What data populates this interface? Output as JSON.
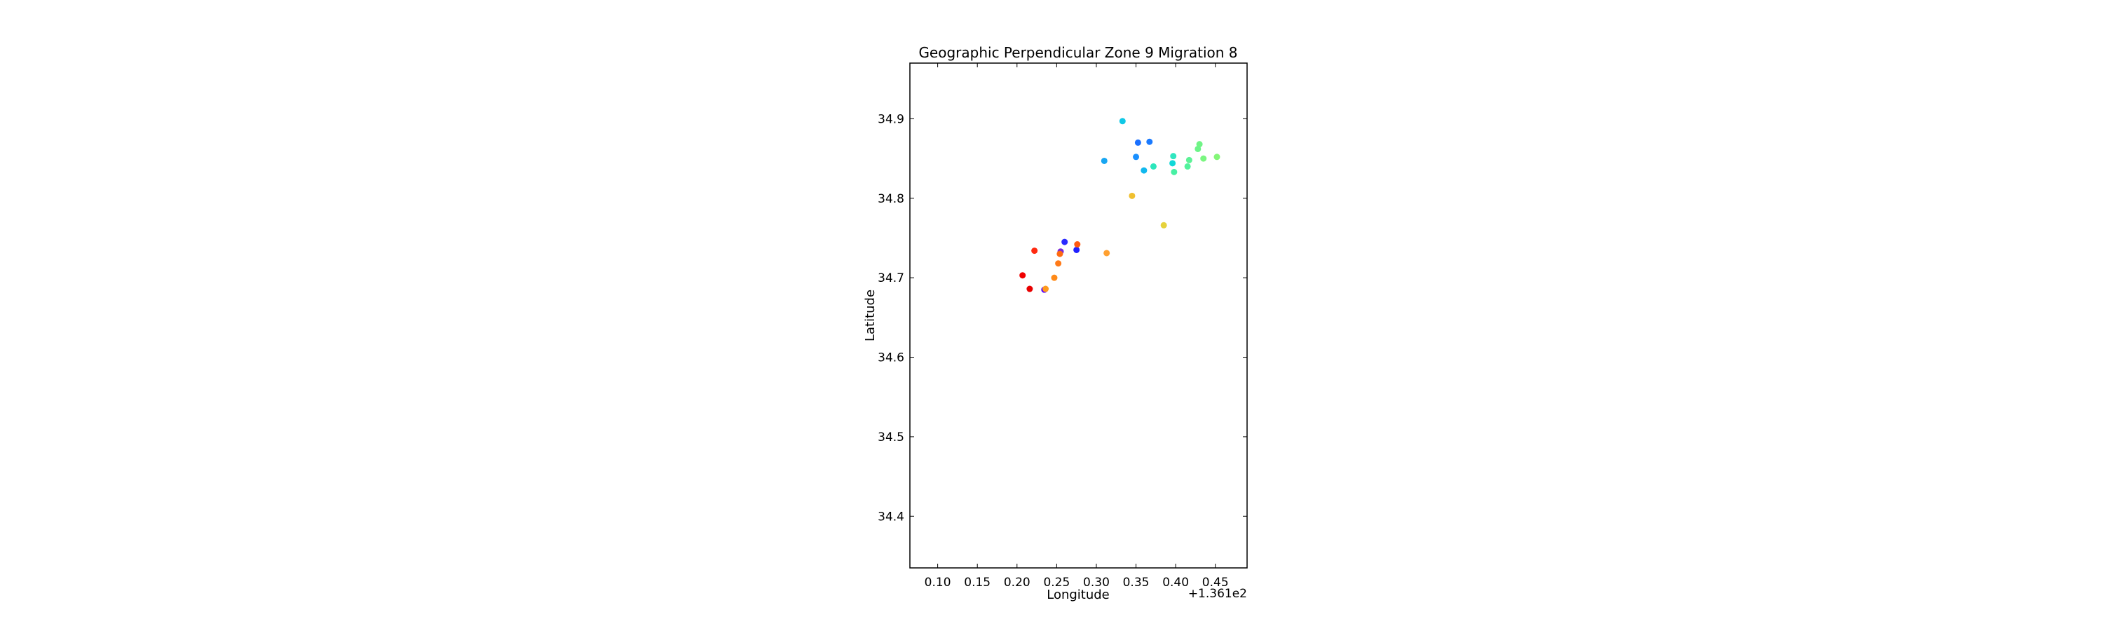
{
  "chart_data": {
    "type": "scatter",
    "title": "Geographic Perpendicular Zone 9 Migration 8",
    "xlabel": "Longitude",
    "ylabel": "Latitude",
    "x_offset_label": "+1.361e2",
    "xlim": [
      136.165,
      136.59
    ],
    "ylim": [
      34.335,
      34.97
    ],
    "x_ticks": [
      136.2,
      136.25,
      136.3,
      136.35,
      136.4,
      136.45,
      136.5,
      136.55
    ],
    "x_tick_labels": [
      "0.10",
      "0.15",
      "0.20",
      "0.25",
      "0.30",
      "0.35",
      "0.40",
      "0.45"
    ],
    "y_ticks": [
      34.4,
      34.5,
      34.6,
      34.7,
      34.8,
      34.9
    ],
    "y_tick_labels": [
      "34.4",
      "34.5",
      "34.6",
      "34.7",
      "34.8",
      "34.9"
    ],
    "grid": false,
    "colormap": "jet",
    "points": [
      {
        "x": 136.3345,
        "y": 34.685,
        "color": "#5500ff"
      },
      {
        "x": 136.36,
        "y": 34.745,
        "color": "#2a2aff"
      },
      {
        "x": 136.375,
        "y": 34.735,
        "color": "#2020ff"
      },
      {
        "x": 136.355,
        "y": 34.733,
        "color": "#7a2ad8"
      },
      {
        "x": 136.4525,
        "y": 34.87,
        "color": "#1a70ff"
      },
      {
        "x": 136.467,
        "y": 34.871,
        "color": "#1a7aff"
      },
      {
        "x": 136.45,
        "y": 34.852,
        "color": "#1a90ff"
      },
      {
        "x": 136.41,
        "y": 34.847,
        "color": "#18a6f2"
      },
      {
        "x": 136.433,
        "y": 34.897,
        "color": "#10c8e6"
      },
      {
        "x": 136.46,
        "y": 34.835,
        "color": "#10b8ee"
      },
      {
        "x": 136.496,
        "y": 34.844,
        "color": "#10d8d8"
      },
      {
        "x": 136.472,
        "y": 34.84,
        "color": "#2ce6bc"
      },
      {
        "x": 136.497,
        "y": 34.853,
        "color": "#30e6c0"
      },
      {
        "x": 136.498,
        "y": 34.833,
        "color": "#48f0a4"
      },
      {
        "x": 136.515,
        "y": 34.84,
        "color": "#52f29c"
      },
      {
        "x": 136.517,
        "y": 34.848,
        "color": "#5cf296"
      },
      {
        "x": 136.528,
        "y": 34.862,
        "color": "#6cf488"
      },
      {
        "x": 136.53,
        "y": 34.868,
        "color": "#70f486"
      },
      {
        "x": 136.535,
        "y": 34.85,
        "color": "#7af680"
      },
      {
        "x": 136.552,
        "y": 34.852,
        "color": "#84f678"
      },
      {
        "x": 136.485,
        "y": 34.766,
        "color": "#e6d23c"
      },
      {
        "x": 136.445,
        "y": 34.803,
        "color": "#f0c030"
      },
      {
        "x": 136.413,
        "y": 34.731,
        "color": "#ffa030"
      },
      {
        "x": 136.336,
        "y": 34.686,
        "color": "#ff9a1c"
      },
      {
        "x": 136.347,
        "y": 34.7,
        "color": "#ff8a18"
      },
      {
        "x": 136.352,
        "y": 34.718,
        "color": "#ff7a18"
      },
      {
        "x": 136.354,
        "y": 34.73,
        "color": "#ff6a10"
      },
      {
        "x": 136.376,
        "y": 34.742,
        "color": "#ff5a10"
      },
      {
        "x": 136.322,
        "y": 34.734,
        "color": "#ff2a10"
      },
      {
        "x": 136.307,
        "y": 34.703,
        "color": "#f00000"
      },
      {
        "x": 136.316,
        "y": 34.686,
        "color": "#e80000"
      }
    ]
  }
}
